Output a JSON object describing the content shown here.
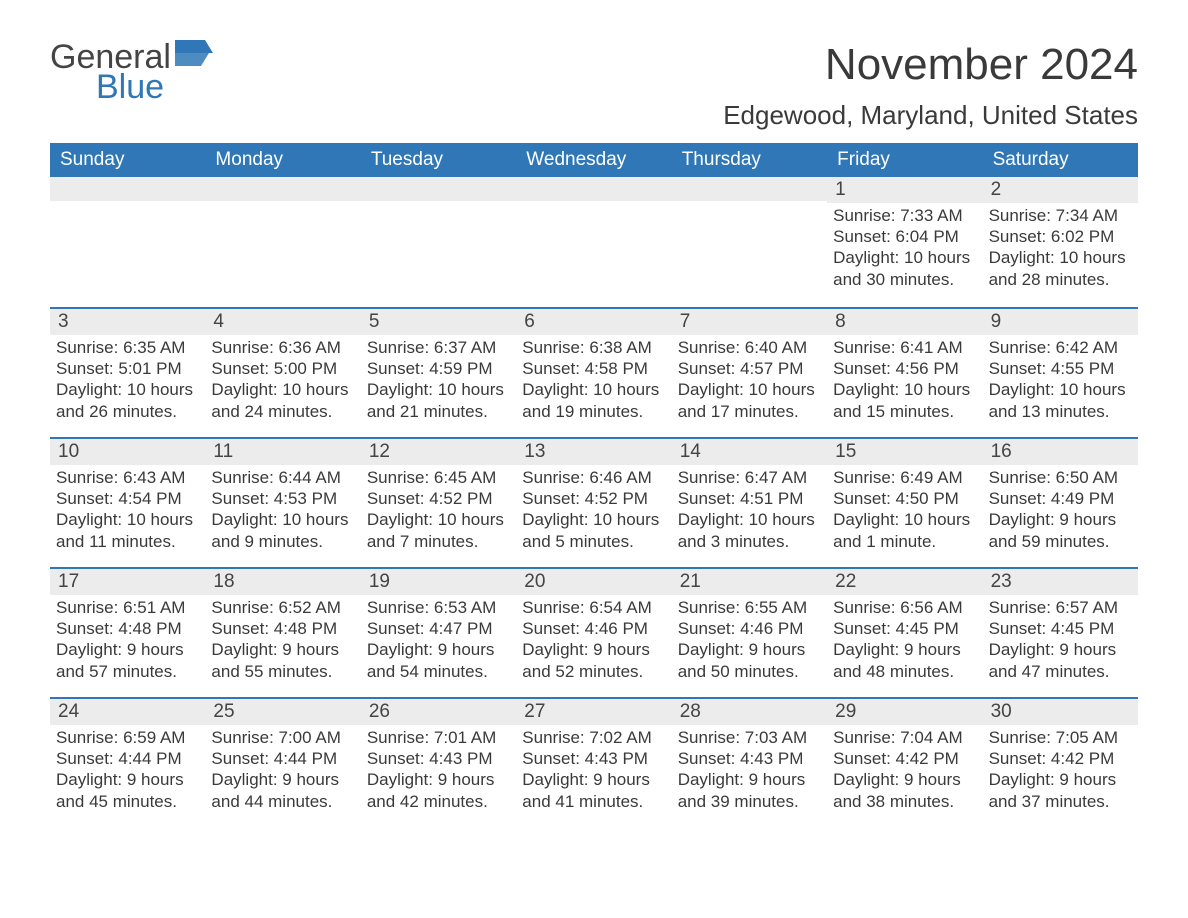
{
  "logo": {
    "word1": "General",
    "word2": "Blue",
    "flag_color": "#2f77b6"
  },
  "title": "November 2024",
  "location": "Edgewood, Maryland, United States",
  "colors": {
    "header_bg": "#2f77b6",
    "header_text": "#ffffff",
    "daynum_bg": "#ececec",
    "text": "#3a3a3a",
    "rule": "#2f77b6",
    "background": "#ffffff"
  },
  "dow": [
    "Sunday",
    "Monday",
    "Tuesday",
    "Wednesday",
    "Thursday",
    "Friday",
    "Saturday"
  ],
  "weeks": [
    [
      {
        "day": null
      },
      {
        "day": null
      },
      {
        "day": null
      },
      {
        "day": null
      },
      {
        "day": null
      },
      {
        "day": 1,
        "sunrise": "7:33 AM",
        "sunset": "6:04 PM",
        "daylight": "10 hours and 30 minutes."
      },
      {
        "day": 2,
        "sunrise": "7:34 AM",
        "sunset": "6:02 PM",
        "daylight": "10 hours and 28 minutes."
      }
    ],
    [
      {
        "day": 3,
        "sunrise": "6:35 AM",
        "sunset": "5:01 PM",
        "daylight": "10 hours and 26 minutes."
      },
      {
        "day": 4,
        "sunrise": "6:36 AM",
        "sunset": "5:00 PM",
        "daylight": "10 hours and 24 minutes."
      },
      {
        "day": 5,
        "sunrise": "6:37 AM",
        "sunset": "4:59 PM",
        "daylight": "10 hours and 21 minutes."
      },
      {
        "day": 6,
        "sunrise": "6:38 AM",
        "sunset": "4:58 PM",
        "daylight": "10 hours and 19 minutes."
      },
      {
        "day": 7,
        "sunrise": "6:40 AM",
        "sunset": "4:57 PM",
        "daylight": "10 hours and 17 minutes."
      },
      {
        "day": 8,
        "sunrise": "6:41 AM",
        "sunset": "4:56 PM",
        "daylight": "10 hours and 15 minutes."
      },
      {
        "day": 9,
        "sunrise": "6:42 AM",
        "sunset": "4:55 PM",
        "daylight": "10 hours and 13 minutes."
      }
    ],
    [
      {
        "day": 10,
        "sunrise": "6:43 AM",
        "sunset": "4:54 PM",
        "daylight": "10 hours and 11 minutes."
      },
      {
        "day": 11,
        "sunrise": "6:44 AM",
        "sunset": "4:53 PM",
        "daylight": "10 hours and 9 minutes."
      },
      {
        "day": 12,
        "sunrise": "6:45 AM",
        "sunset": "4:52 PM",
        "daylight": "10 hours and 7 minutes."
      },
      {
        "day": 13,
        "sunrise": "6:46 AM",
        "sunset": "4:52 PM",
        "daylight": "10 hours and 5 minutes."
      },
      {
        "day": 14,
        "sunrise": "6:47 AM",
        "sunset": "4:51 PM",
        "daylight": "10 hours and 3 minutes."
      },
      {
        "day": 15,
        "sunrise": "6:49 AM",
        "sunset": "4:50 PM",
        "daylight": "10 hours and 1 minute."
      },
      {
        "day": 16,
        "sunrise": "6:50 AM",
        "sunset": "4:49 PM",
        "daylight": "9 hours and 59 minutes."
      }
    ],
    [
      {
        "day": 17,
        "sunrise": "6:51 AM",
        "sunset": "4:48 PM",
        "daylight": "9 hours and 57 minutes."
      },
      {
        "day": 18,
        "sunrise": "6:52 AM",
        "sunset": "4:48 PM",
        "daylight": "9 hours and 55 minutes."
      },
      {
        "day": 19,
        "sunrise": "6:53 AM",
        "sunset": "4:47 PM",
        "daylight": "9 hours and 54 minutes."
      },
      {
        "day": 20,
        "sunrise": "6:54 AM",
        "sunset": "4:46 PM",
        "daylight": "9 hours and 52 minutes."
      },
      {
        "day": 21,
        "sunrise": "6:55 AM",
        "sunset": "4:46 PM",
        "daylight": "9 hours and 50 minutes."
      },
      {
        "day": 22,
        "sunrise": "6:56 AM",
        "sunset": "4:45 PM",
        "daylight": "9 hours and 48 minutes."
      },
      {
        "day": 23,
        "sunrise": "6:57 AM",
        "sunset": "4:45 PM",
        "daylight": "9 hours and 47 minutes."
      }
    ],
    [
      {
        "day": 24,
        "sunrise": "6:59 AM",
        "sunset": "4:44 PM",
        "daylight": "9 hours and 45 minutes."
      },
      {
        "day": 25,
        "sunrise": "7:00 AM",
        "sunset": "4:44 PM",
        "daylight": "9 hours and 44 minutes."
      },
      {
        "day": 26,
        "sunrise": "7:01 AM",
        "sunset": "4:43 PM",
        "daylight": "9 hours and 42 minutes."
      },
      {
        "day": 27,
        "sunrise": "7:02 AM",
        "sunset": "4:43 PM",
        "daylight": "9 hours and 41 minutes."
      },
      {
        "day": 28,
        "sunrise": "7:03 AM",
        "sunset": "4:43 PM",
        "daylight": "9 hours and 39 minutes."
      },
      {
        "day": 29,
        "sunrise": "7:04 AM",
        "sunset": "4:42 PM",
        "daylight": "9 hours and 38 minutes."
      },
      {
        "day": 30,
        "sunrise": "7:05 AM",
        "sunset": "4:42 PM",
        "daylight": "9 hours and 37 minutes."
      }
    ]
  ],
  "labels": {
    "sunrise": "Sunrise:",
    "sunset": "Sunset:",
    "daylight": "Daylight:"
  }
}
